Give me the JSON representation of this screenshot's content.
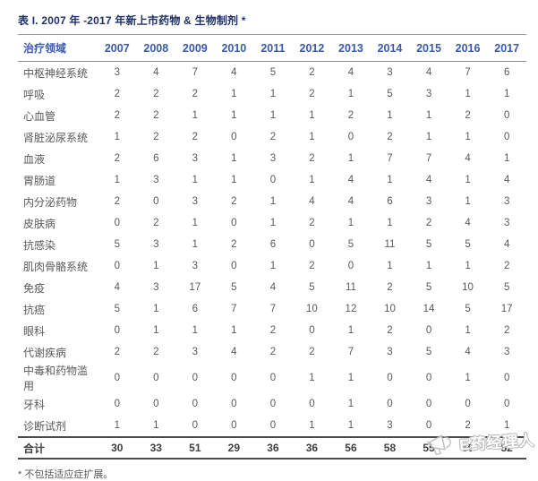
{
  "title": "表 I. 2007 年 -2017 年新上市药物 & 生物制剂 *",
  "footnote": "* 不包括适应症扩展。",
  "watermark": {
    "text": "E药经理人"
  },
  "colors": {
    "title": "#1f3068",
    "header": "#3a5aa8",
    "body_text": "#595959",
    "total_text": "#3f3f3f",
    "rule_light": "#9d9d9d",
    "rule_dark": "#4a4a4a",
    "watermark_gray": "#b8b8b8"
  },
  "table": {
    "header": [
      "治疗领域",
      "2007",
      "2008",
      "2009",
      "2010",
      "2011",
      "2012",
      "2013",
      "2014",
      "2015",
      "2016",
      "2017"
    ],
    "rows": [
      {
        "label": "中枢神经系统",
        "values": [
          3,
          4,
          7,
          4,
          5,
          2,
          4,
          3,
          4,
          7,
          6
        ]
      },
      {
        "label": "呼吸",
        "values": [
          2,
          2,
          2,
          1,
          1,
          2,
          1,
          5,
          3,
          1,
          1
        ]
      },
      {
        "label": "心血管",
        "values": [
          2,
          2,
          1,
          1,
          1,
          1,
          2,
          1,
          1,
          2,
          0
        ]
      },
      {
        "label": "肾脏泌尿系统",
        "values": [
          1,
          2,
          2,
          0,
          2,
          1,
          0,
          2,
          1,
          1,
          0
        ]
      },
      {
        "label": "血液",
        "values": [
          2,
          6,
          3,
          1,
          3,
          2,
          1,
          7,
          7,
          4,
          1
        ]
      },
      {
        "label": "胃肠道",
        "values": [
          1,
          3,
          1,
          1,
          0,
          1,
          4,
          1,
          4,
          1,
          4
        ]
      },
      {
        "label": "内分泌药物",
        "values": [
          2,
          0,
          3,
          2,
          1,
          4,
          4,
          6,
          3,
          1,
          3
        ]
      },
      {
        "label": "皮肤病",
        "values": [
          0,
          2,
          1,
          0,
          1,
          2,
          1,
          1,
          2,
          4,
          3
        ]
      },
      {
        "label": "抗感染",
        "values": [
          5,
          3,
          1,
          2,
          6,
          0,
          5,
          11,
          5,
          5,
          4
        ]
      },
      {
        "label": "肌肉骨骼系统",
        "values": [
          0,
          1,
          3,
          0,
          1,
          2,
          0,
          1,
          1,
          1,
          2
        ]
      },
      {
        "label": "免疫",
        "values": [
          4,
          3,
          17,
          5,
          4,
          5,
          11,
          2,
          5,
          10,
          5
        ]
      },
      {
        "label": "抗癌",
        "values": [
          5,
          1,
          6,
          7,
          7,
          10,
          12,
          10,
          14,
          5,
          17
        ]
      },
      {
        "label": "眼科",
        "values": [
          0,
          1,
          1,
          1,
          2,
          0,
          1,
          2,
          0,
          1,
          2
        ]
      },
      {
        "label": "代谢疾病",
        "values": [
          2,
          2,
          3,
          4,
          2,
          2,
          7,
          3,
          5,
          4,
          3
        ]
      },
      {
        "label": "中毒和药物滥用",
        "values": [
          0,
          0,
          0,
          0,
          0,
          1,
          1,
          0,
          0,
          1,
          0
        ]
      },
      {
        "label": "牙科",
        "values": [
          0,
          0,
          0,
          0,
          0,
          0,
          1,
          0,
          0,
          0,
          0
        ]
      },
      {
        "label": "诊断试剂",
        "values": [
          1,
          1,
          0,
          0,
          0,
          1,
          1,
          3,
          0,
          2,
          1
        ]
      }
    ],
    "total": {
      "label": "合计",
      "values": [
        30,
        33,
        51,
        29,
        36,
        36,
        56,
        58,
        55,
        50,
        52
      ]
    }
  }
}
